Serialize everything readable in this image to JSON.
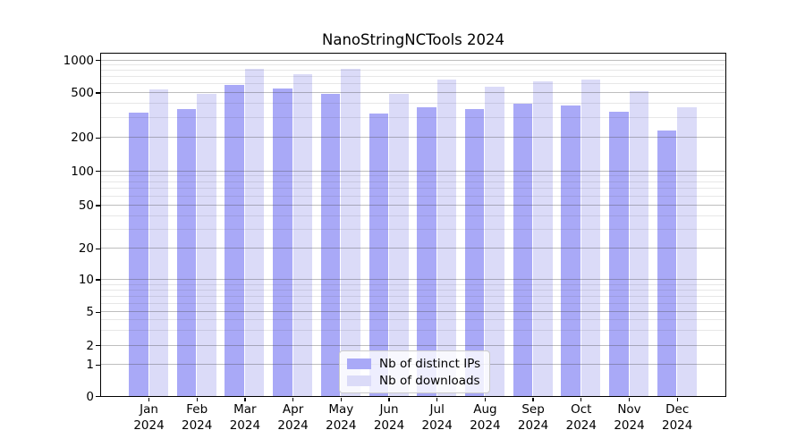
{
  "title": "NanoStringNCTools 2024",
  "chart_data": {
    "type": "bar",
    "title": "NanoStringNCTools 2024",
    "categories": [
      "Jan 2024",
      "Feb 2024",
      "Mar 2024",
      "Apr 2024",
      "May 2024",
      "Jun 2024",
      "Jul 2024",
      "Aug 2024",
      "Sep 2024",
      "Oct 2024",
      "Nov 2024",
      "Dec 2024"
    ],
    "x_tick_months": [
      "Jan",
      "Feb",
      "Mar",
      "Apr",
      "May",
      "Jun",
      "Jul",
      "Aug",
      "Sep",
      "Oct",
      "Nov",
      "Dec"
    ],
    "x_tick_year": "2024",
    "series": [
      {
        "name": "Nb of distinct IPs",
        "color": "#a9a9f7",
        "values": [
          330,
          360,
          590,
          540,
          490,
          325,
          370,
          358,
          400,
          385,
          340,
          230
        ]
      },
      {
        "name": "Nb of downloads",
        "color": "#dbdbf8",
        "values": [
          530,
          490,
          820,
          735,
          820,
          490,
          655,
          570,
          635,
          655,
          515,
          370
        ]
      }
    ],
    "xlabel": "",
    "ylabel": "",
    "y_scale": "log-like with 0 baseline",
    "y_ticks": [
      0,
      1,
      2,
      5,
      10,
      20,
      50,
      100,
      200,
      500,
      1000
    ],
    "ylim": [
      0,
      1150
    ],
    "grid": true,
    "legend_position": "lower center"
  }
}
